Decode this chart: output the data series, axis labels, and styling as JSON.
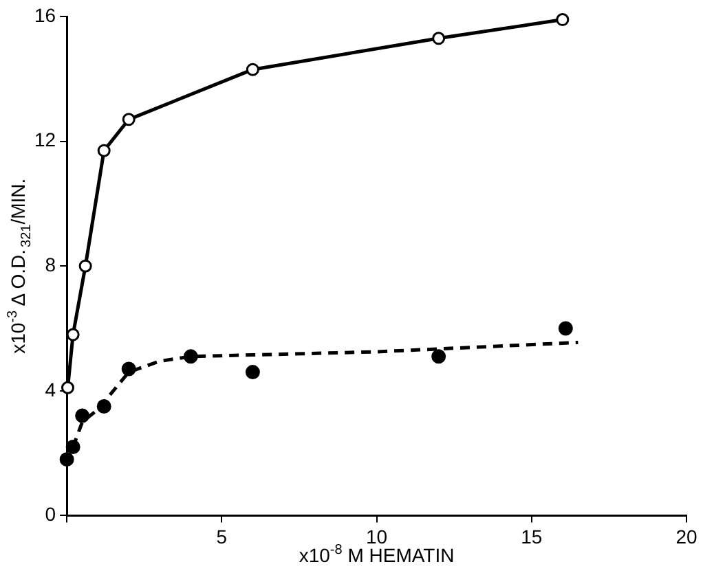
{
  "chart_data": {
    "type": "line",
    "xlabel": "x10$^{-8}$ M HEMATIN",
    "ylabel": "x10$^{-3}$ Δ O.D.$_{321}$/MIN.",
    "xlim": [
      0,
      20
    ],
    "ylim": [
      0,
      16
    ],
    "xticks": [
      {
        "value": 0,
        "label": null
      },
      5,
      10,
      15,
      20
    ],
    "yticks": [
      0,
      4,
      8,
      12,
      16
    ],
    "grid": false,
    "legend": false,
    "series": [
      {
        "color": "#000000",
        "marker": "circle",
        "line_style": "solid",
        "x": [
          0.03,
          0.2,
          0.6,
          1.2,
          2.0,
          6.0,
          12.0,
          16.0
        ],
        "values": [
          4.1,
          5.8,
          8.0,
          11.7,
          12.7,
          14.3,
          15.3,
          15.9
        ]
      },
      {
        "type": "scatter",
        "color": "#000000",
        "marker": "circle",
        "x": [
          0,
          0.2,
          0.5,
          1.2,
          2.0,
          4.0,
          6.0,
          12.0,
          16.1
        ],
        "values": [
          1.8,
          2.2,
          3.2,
          3.5,
          4.7,
          5.1,
          4.6,
          5.1,
          6.0
        ]
      },
      {
        "type": "line",
        "color": "#000000",
        "marker": "none",
        "line_style": "dashed",
        "x": [
          0,
          0.2,
          0.5,
          1.0,
          2.0,
          3.0,
          4.0,
          6.0,
          10.0,
          16.5
        ],
        "values": [
          1.7,
          2.2,
          3.0,
          3.4,
          4.6,
          4.95,
          5.1,
          5.15,
          5.25,
          5.55
        ]
      }
    ]
  }
}
